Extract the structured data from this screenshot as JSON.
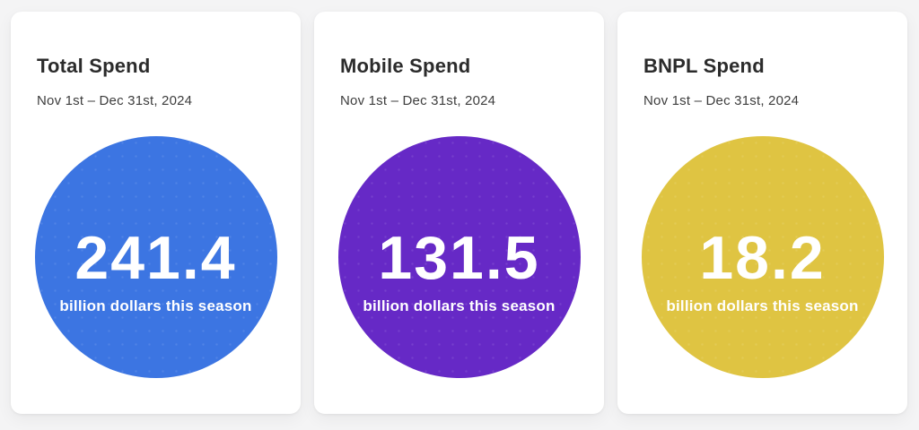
{
  "page": {
    "background": "#f4f4f5"
  },
  "cards": [
    {
      "title": "Total Spend",
      "date_range": "Nov 1st – Dec 31st, 2024",
      "value": "241.4",
      "caption": "billion dollars this season",
      "circle_color": "#3c75e2"
    },
    {
      "title": "Mobile Spend",
      "date_range": "Nov 1st – Dec 31st, 2024",
      "value": "131.5",
      "caption": "billion dollars this season",
      "circle_color": "#6629c6"
    },
    {
      "title": "BNPL Spend",
      "date_range": "Nov 1st – Dec 31st, 2024",
      "value": "18.2",
      "caption": "billion dollars this season",
      "circle_color": "#dfc442"
    }
  ],
  "chart_data": {
    "type": "table",
    "categories": [
      "Total Spend",
      "Mobile Spend",
      "BNPL Spend"
    ],
    "values": [
      241.4,
      131.5,
      18.2
    ],
    "unit": "billion dollars this season",
    "period": "Nov 1st – Dec 31st, 2024",
    "colors": [
      "#3c75e2",
      "#6629c6",
      "#dfc442"
    ]
  }
}
